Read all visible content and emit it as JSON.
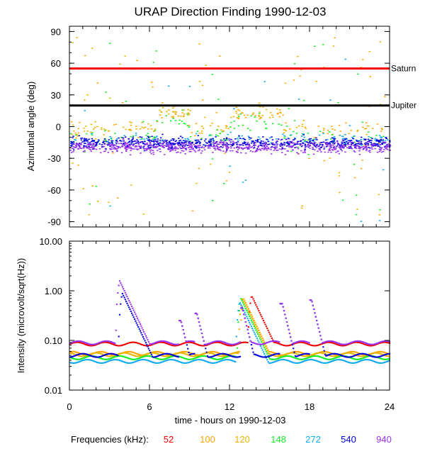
{
  "chart_data": {
    "type": "scatter",
    "title": "URAP Direction Finding  1990-12-03",
    "xlabel": "time - hours on 1990-12-03",
    "xlim": [
      0,
      24
    ],
    "xticks": [
      0,
      6,
      12,
      18,
      24
    ],
    "xtick_labels": [
      "0",
      "6",
      "12",
      "18",
      "24"
    ],
    "legend_prefix": "Frequencies (kHz):",
    "frequencies": [
      {
        "label": "52",
        "color": "#ee0000",
        "base": 0.085,
        "peak_time": 13.6,
        "peak_int": 0.8,
        "mean_angle": null
      },
      {
        "label": "100",
        "color": "#ffa500",
        "base": 0.055,
        "peak_time": 13.0,
        "peak_int": 0.7,
        "mean_angle": 12
      },
      {
        "label": "120",
        "color": "#e8b400",
        "base": 0.052,
        "peak_time": 12.9,
        "peak_int": 0.72,
        "mean_angle": 14
      },
      {
        "label": "148",
        "color": "#11ee22",
        "base": 0.045,
        "peak_time": 12.8,
        "peak_int": 0.7,
        "mean_angle": 5
      },
      {
        "label": "272",
        "color": "#11aaee",
        "base": 0.038,
        "peak_time": 12.7,
        "peak_int": 0.6,
        "mean_angle": -12
      },
      {
        "label": "540",
        "color": "#0000dd",
        "base": 0.05,
        "peak_time": 3.9,
        "peak_int": 0.9,
        "mean_angle": -15
      },
      {
        "label": "940",
        "color": "#9933ee",
        "base": 0.09,
        "peak_time": 3.7,
        "peak_int": 1.6,
        "mean_angle": -19
      }
    ],
    "panels": [
      {
        "name": "direction",
        "ylabel": "Azimuthal angle (deg)",
        "ylim": [
          -95,
          95
        ],
        "yticks": [
          90,
          60,
          30,
          0,
          -30,
          -60,
          -90
        ],
        "ytick_labels": [
          "90",
          "60",
          "30",
          "0",
          "-30",
          "-60",
          "-90"
        ],
        "reference_lines": [
          {
            "label": "Saturn",
            "y": 55,
            "color": "#ee0000"
          },
          {
            "label": "Jupiter",
            "y": 20,
            "color": "#000000"
          }
        ]
      },
      {
        "name": "intensity",
        "ylabel": "Intensity (microvolt/sqrt(Hz))",
        "yscale": "log",
        "ylim": [
          0.01,
          10
        ],
        "yticks": [
          10,
          1,
          0.1,
          0.01
        ],
        "ytick_labels": [
          "10.00",
          "1.00",
          "0.10",
          "0.01"
        ]
      }
    ]
  }
}
